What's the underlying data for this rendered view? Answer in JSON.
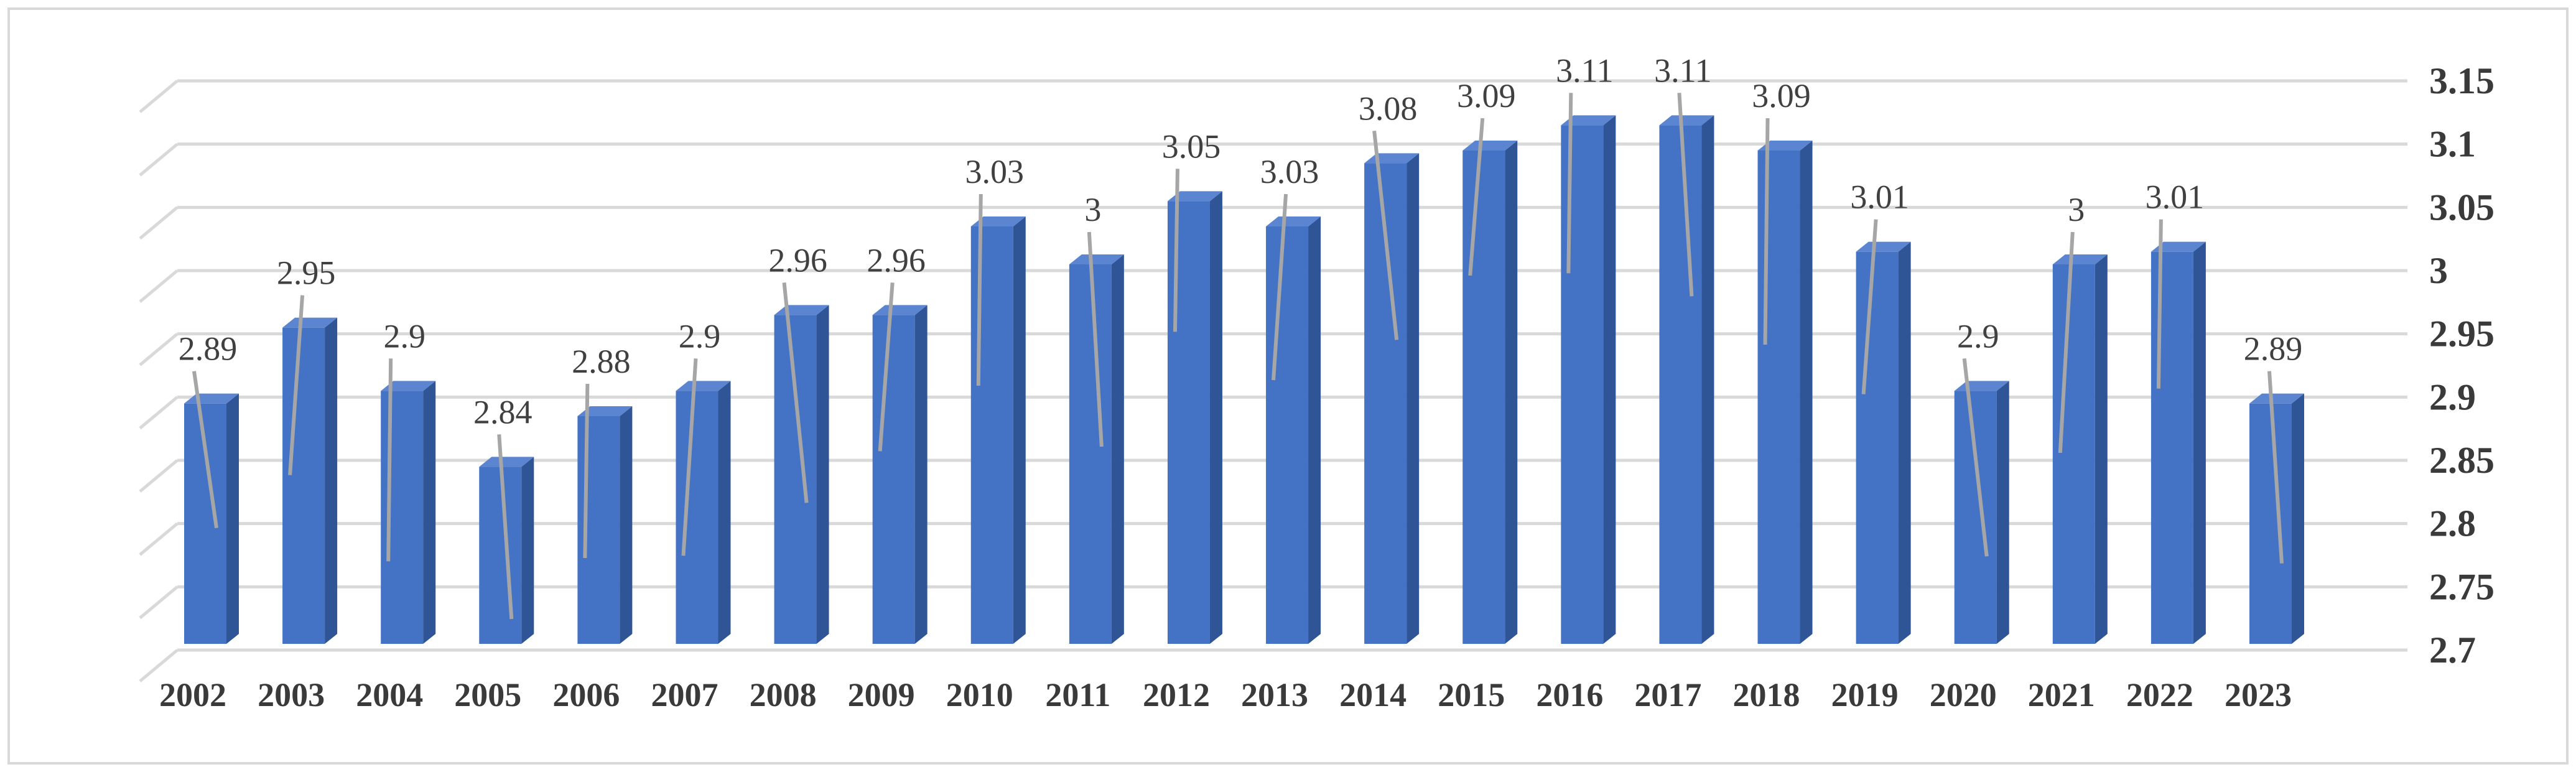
{
  "chart_data": {
    "type": "bar",
    "style": "3d-column",
    "categories": [
      "2002",
      "2003",
      "2004",
      "2005",
      "2006",
      "2007",
      "2008",
      "2009",
      "2010",
      "2011",
      "2012",
      "2013",
      "2014",
      "2015",
      "2016",
      "2017",
      "2018",
      "2019",
      "2020",
      "2021",
      "2022",
      "2023"
    ],
    "values": [
      2.89,
      2.95,
      2.9,
      2.84,
      2.88,
      2.9,
      2.96,
      2.96,
      3.03,
      3,
      3.05,
      3.03,
      3.08,
      3.09,
      3.11,
      3.11,
      3.09,
      3.01,
      2.9,
      3,
      3.01,
      2.89
    ],
    "ylim": [
      2.7,
      3.15
    ],
    "y_ticks": [
      2.7,
      2.75,
      2.8,
      2.85,
      2.9,
      2.95,
      3,
      3.05,
      3.1,
      3.15
    ],
    "y_tick_labels": [
      "2.7",
      "2.75",
      "2.8",
      "2.85",
      "2.9",
      "2.95",
      "3",
      "3.05",
      "3.1",
      "3.15"
    ],
    "data_labels": [
      "2.89",
      "2.95",
      "2.9",
      "2.84",
      "2.88",
      "2.9",
      "2.96",
      "2.96",
      "3.03",
      "3",
      "3.05",
      "3.03",
      "3.08",
      "3.09",
      "3.11",
      "3.11",
      "3.09",
      "3.01",
      "2.9",
      "3",
      "3.01",
      "2.89"
    ],
    "y_axis_side": "right",
    "grid": true,
    "legend": "none",
    "title": "",
    "xlabel": "",
    "ylabel": "",
    "colors": {
      "bar_front": "#4472C4",
      "bar_side": "#2F5597",
      "bar_top": "#5B85D1",
      "grid": "#D9D9D9",
      "leader_line": "#A6A6A6",
      "frame": "#D9D9D9"
    }
  }
}
